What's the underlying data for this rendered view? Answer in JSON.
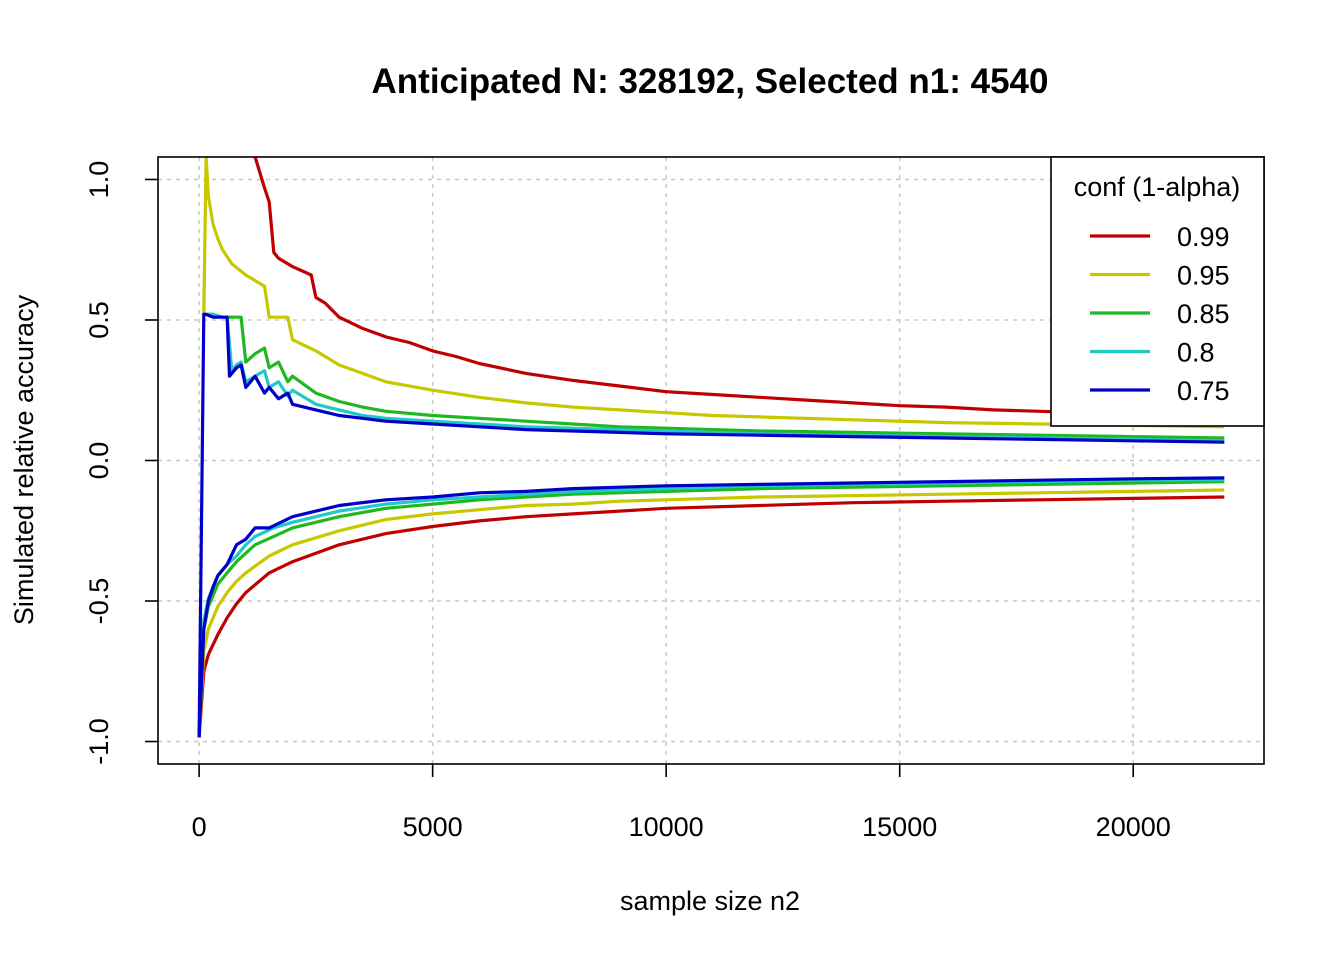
{
  "chart_data": {
    "type": "line",
    "title": "Anticipated N: 328192, Selected n1: 4540",
    "xlabel": "sample size n2",
    "ylabel": "Simulated relative accuracy",
    "xlim": [
      -880,
      22800
    ],
    "ylim": [
      -1.08,
      1.08
    ],
    "xticks": [
      0,
      5000,
      10000,
      15000,
      20000
    ],
    "xtick_labels": [
      "0",
      "5000",
      "10000",
      "15000",
      "20000"
    ],
    "yticks": [
      -1.0,
      -0.5,
      0.0,
      0.5,
      1.0
    ],
    "ytick_labels": [
      "-1.0",
      "-0.5",
      "0.0",
      "0.5",
      "1.0"
    ],
    "grid": true,
    "legend": {
      "title": "conf (1-alpha)",
      "position": "top-right",
      "entries": [
        "0.99",
        "0.95",
        "0.85",
        "0.8",
        "0.75"
      ]
    },
    "colors": {
      "0.99": "#C00000",
      "0.95": "#C8C800",
      "0.85": "#20B820",
      "0.8": "#20C8C8",
      "0.75": "#0000C8"
    },
    "series": [
      {
        "name": "0.99",
        "upper": {
          "x": [
            1200,
            1400,
            1500,
            1600,
            1700,
            2000,
            2400,
            2500,
            2700,
            3000,
            3500,
            4000,
            4500,
            5000,
            5500,
            6000,
            7000,
            8000,
            9000,
            10000,
            11000,
            12000,
            13000,
            14000,
            15000,
            16000,
            17000,
            18000,
            19000,
            20000,
            21000,
            21950
          ],
          "y": [
            1.08,
            0.97,
            0.92,
            0.74,
            0.72,
            0.69,
            0.66,
            0.58,
            0.56,
            0.51,
            0.47,
            0.44,
            0.42,
            0.39,
            0.37,
            0.345,
            0.31,
            0.285,
            0.265,
            0.245,
            0.235,
            0.225,
            0.215,
            0.205,
            0.195,
            0.19,
            0.18,
            0.175,
            0.17,
            0.165,
            0.16,
            0.155
          ]
        },
        "lower": {
          "x": [
            0,
            100,
            200,
            400,
            600,
            800,
            1000,
            1500,
            2000,
            3000,
            4000,
            5000,
            6000,
            7000,
            8000,
            9000,
            10000,
            12000,
            14000,
            16000,
            18000,
            20000,
            21950
          ],
          "y": [
            -0.985,
            -0.75,
            -0.69,
            -0.62,
            -0.56,
            -0.51,
            -0.47,
            -0.4,
            -0.36,
            -0.3,
            -0.26,
            -0.235,
            -0.215,
            -0.2,
            -0.19,
            -0.18,
            -0.17,
            -0.16,
            -0.15,
            -0.145,
            -0.14,
            -0.135,
            -0.13
          ]
        }
      },
      {
        "name": "0.95",
        "upper": {
          "x": [
            100,
            150,
            200,
            300,
            400,
            500,
            700,
            1000,
            1200,
            1400,
            1500,
            1600,
            1900,
            2000,
            2500,
            3000,
            3500,
            4000,
            5000,
            6000,
            7000,
            8000,
            9000,
            10000,
            11000,
            12000,
            14000,
            16000,
            18000,
            20000,
            21950
          ],
          "y": [
            0.52,
            1.08,
            0.94,
            0.84,
            0.79,
            0.75,
            0.7,
            0.66,
            0.64,
            0.62,
            0.51,
            0.51,
            0.51,
            0.43,
            0.39,
            0.34,
            0.31,
            0.28,
            0.25,
            0.225,
            0.205,
            0.19,
            0.18,
            0.17,
            0.16,
            0.155,
            0.145,
            0.135,
            0.13,
            0.125,
            0.12
          ]
        },
        "lower": {
          "x": [
            0,
            100,
            200,
            400,
            600,
            800,
            1000,
            1500,
            2000,
            3000,
            4000,
            5000,
            6000,
            7000,
            8000,
            9000,
            10000,
            12000,
            14000,
            16000,
            18000,
            20000,
            21950
          ],
          "y": [
            -0.985,
            -0.68,
            -0.6,
            -0.52,
            -0.47,
            -0.43,
            -0.4,
            -0.34,
            -0.3,
            -0.25,
            -0.21,
            -0.19,
            -0.175,
            -0.16,
            -0.155,
            -0.145,
            -0.14,
            -0.13,
            -0.125,
            -0.12,
            -0.115,
            -0.11,
            -0.105
          ]
        }
      },
      {
        "name": "0.85",
        "upper": {
          "x": [
            100,
            150,
            300,
            500,
            700,
            800,
            900,
            1000,
            1200,
            1400,
            1500,
            1700,
            1900,
            2000,
            2500,
            3000,
            3500,
            4000,
            5000,
            6000,
            7000,
            8000,
            9000,
            10000,
            12000,
            14000,
            16000,
            18000,
            20000,
            21950
          ],
          "y": [
            0.52,
            0.52,
            0.52,
            0.51,
            0.51,
            0.51,
            0.51,
            0.35,
            0.38,
            0.4,
            0.33,
            0.35,
            0.28,
            0.3,
            0.24,
            0.21,
            0.19,
            0.175,
            0.16,
            0.15,
            0.14,
            0.13,
            0.12,
            0.115,
            0.105,
            0.1,
            0.095,
            0.09,
            0.085,
            0.08
          ]
        },
        "lower": {
          "x": [
            0,
            100,
            200,
            400,
            600,
            800,
            1000,
            1200,
            1600,
            2000,
            3000,
            4000,
            5000,
            6000,
            7000,
            8000,
            9000,
            10000,
            12000,
            14000,
            16000,
            18000,
            20000,
            21950
          ],
          "y": [
            -0.985,
            -0.6,
            -0.52,
            -0.44,
            -0.4,
            -0.36,
            -0.33,
            -0.3,
            -0.27,
            -0.24,
            -0.2,
            -0.17,
            -0.155,
            -0.14,
            -0.13,
            -0.12,
            -0.115,
            -0.11,
            -0.1,
            -0.095,
            -0.09,
            -0.085,
            -0.08,
            -0.075
          ]
        }
      },
      {
        "name": "0.8",
        "upper": {
          "x": [
            100,
            150,
            300,
            500,
            600,
            700,
            800,
            900,
            1000,
            1200,
            1400,
            1500,
            1700,
            1900,
            2000,
            2500,
            3000,
            3500,
            4000,
            5000,
            6000,
            7000,
            8000,
            9000,
            10000,
            12000,
            14000,
            16000,
            18000,
            20000,
            21950
          ],
          "y": [
            0.52,
            0.52,
            0.52,
            0.51,
            0.51,
            0.32,
            0.34,
            0.35,
            0.28,
            0.3,
            0.32,
            0.26,
            0.28,
            0.23,
            0.25,
            0.2,
            0.18,
            0.16,
            0.15,
            0.14,
            0.13,
            0.12,
            0.115,
            0.11,
            0.105,
            0.095,
            0.09,
            0.085,
            0.08,
            0.075,
            0.07
          ]
        },
        "lower": {
          "x": [
            0,
            100,
            200,
            400,
            600,
            800,
            1000,
            1200,
            1600,
            2000,
            3000,
            4000,
            5000,
            6000,
            7000,
            8000,
            9000,
            10000,
            12000,
            14000,
            16000,
            18000,
            20000,
            21950
          ],
          "y": [
            -0.985,
            -0.57,
            -0.49,
            -0.41,
            -0.37,
            -0.34,
            -0.3,
            -0.27,
            -0.24,
            -0.22,
            -0.18,
            -0.155,
            -0.14,
            -0.13,
            -0.12,
            -0.11,
            -0.105,
            -0.1,
            -0.09,
            -0.085,
            -0.08,
            -0.075,
            -0.07,
            -0.068
          ]
        }
      },
      {
        "name": "0.75",
        "upper": {
          "x": [
            0,
            100,
            150,
            300,
            500,
            600,
            650,
            800,
            900,
            1000,
            1100,
            1200,
            1400,
            1500,
            1700,
            1900,
            2000,
            2500,
            3000,
            3500,
            4000,
            5000,
            6000,
            7000,
            8000,
            9000,
            10000,
            12000,
            14000,
            16000,
            18000,
            20000,
            21950
          ],
          "y": [
            -0.985,
            0.52,
            0.52,
            0.51,
            0.51,
            0.51,
            0.3,
            0.33,
            0.34,
            0.26,
            0.28,
            0.3,
            0.24,
            0.26,
            0.22,
            0.24,
            0.2,
            0.18,
            0.16,
            0.15,
            0.14,
            0.13,
            0.12,
            0.11,
            0.105,
            0.1,
            0.095,
            0.09,
            0.085,
            0.08,
            0.075,
            0.07,
            0.065
          ]
        },
        "lower": {
          "x": [
            0,
            100,
            200,
            300,
            400,
            600,
            800,
            1000,
            1200,
            1500,
            2000,
            3000,
            4000,
            5000,
            6000,
            7000,
            8000,
            9000,
            10000,
            12000,
            14000,
            16000,
            18000,
            20000,
            21950
          ],
          "y": [
            -0.985,
            -0.6,
            -0.5,
            -0.45,
            -0.41,
            -0.37,
            -0.3,
            -0.28,
            -0.24,
            -0.24,
            -0.2,
            -0.16,
            -0.14,
            -0.13,
            -0.115,
            -0.11,
            -0.1,
            -0.095,
            -0.09,
            -0.085,
            -0.08,
            -0.075,
            -0.07,
            -0.065,
            -0.062
          ]
        }
      }
    ]
  }
}
